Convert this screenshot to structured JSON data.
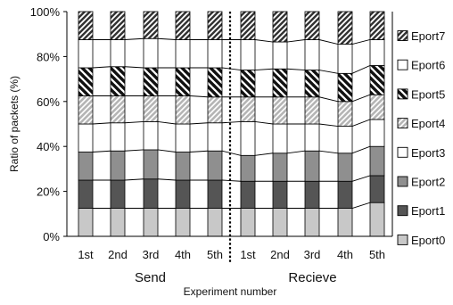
{
  "chart_data": {
    "type": "bar",
    "stacked": true,
    "ylabel": "Ratio of packets (%)",
    "xlabel": "Experiment number",
    "ylim": [
      0,
      100
    ],
    "yticks": [
      "0%",
      "20%",
      "40%",
      "60%",
      "80%",
      "100%"
    ],
    "yticks_values": [
      0,
      20,
      40,
      60,
      80,
      100
    ],
    "categories": [
      "1st",
      "2nd",
      "3rd",
      "4th",
      "5th",
      "1st",
      "2nd",
      "3rd",
      "4th",
      "5th"
    ],
    "groups": [
      {
        "label": "Send",
        "categories": [
          0,
          1,
          2,
          3,
          4
        ]
      },
      {
        "label": "Recieve",
        "categories": [
          5,
          6,
          7,
          8,
          9
        ]
      }
    ],
    "legend_position": "right",
    "series": [
      {
        "name": "Eport0",
        "color": "#c8c8c8",
        "pattern": "solid",
        "values": [
          12.5,
          12.5,
          12.5,
          12.5,
          12.5,
          12.5,
          12.5,
          12.5,
          12.5,
          15
        ]
      },
      {
        "name": "Eport1",
        "color": "#555555",
        "pattern": "solid",
        "values": [
          12.5,
          12.5,
          13,
          12.5,
          12.5,
          12,
          12,
          12,
          12,
          12
        ]
      },
      {
        "name": "Eport2",
        "color": "#8f8f8f",
        "pattern": "solid",
        "values": [
          12.5,
          13,
          13,
          12.5,
          13,
          11.5,
          12.5,
          13.5,
          12.5,
          13
        ]
      },
      {
        "name": "Eport3",
        "color": "#ffffff",
        "pattern": "solid",
        "values": [
          12.5,
          12.5,
          12.5,
          12.5,
          12.5,
          15,
          13,
          12,
          12,
          12
        ]
      },
      {
        "name": "Eport4",
        "color": "#d0d0d0",
        "pattern": "hatch-light",
        "values": [
          12.5,
          12,
          11.5,
          12.5,
          11.5,
          11,
          12,
          12,
          11,
          11
        ]
      },
      {
        "name": "Eport5",
        "color": "#111111",
        "pattern": "hatch-bold",
        "values": [
          12.5,
          13,
          12.5,
          12.5,
          13,
          12,
          12.5,
          12,
          12.5,
          13
        ]
      },
      {
        "name": "Eport6",
        "color": "#ffffff",
        "pattern": "solid",
        "values": [
          12.5,
          12,
          13,
          12.5,
          12.5,
          13.5,
          12,
          13.5,
          13,
          11.5
        ]
      },
      {
        "name": "Eport7",
        "color": "#333333",
        "pattern": "hatch-fwd",
        "values": [
          12.5,
          12.5,
          12,
          12.5,
          12.5,
          12.5,
          13.5,
          12.5,
          14.5,
          12.5
        ]
      }
    ]
  }
}
